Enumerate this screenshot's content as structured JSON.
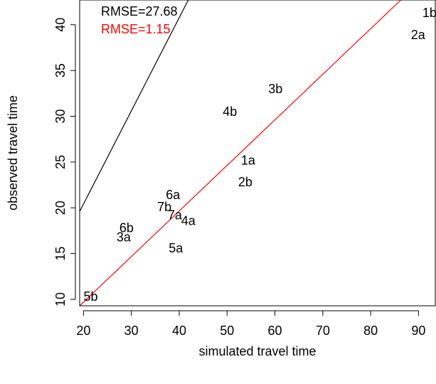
{
  "chart_data": {
    "type": "scatter",
    "xlabel": "simulated travel time",
    "ylabel": "observed travel time",
    "xlim": [
      19.2,
      93.5
    ],
    "ylim": [
      9.3,
      42.7
    ],
    "x_ticks": [
      "20",
      "30",
      "40",
      "50",
      "60",
      "70",
      "80",
      "90"
    ],
    "y_ticks": [
      "10",
      "15",
      "20",
      "25",
      "30",
      "35",
      "40"
    ],
    "points": [
      {
        "label": "1b",
        "x": 92.3,
        "y": 41.3
      },
      {
        "label": "2a",
        "x": 89.9,
        "y": 38.9
      },
      {
        "label": "3b",
        "x": 60.1,
        "y": 33.0
      },
      {
        "label": "4b",
        "x": 50.6,
        "y": 30.5
      },
      {
        "label": "1a",
        "x": 54.4,
        "y": 25.2
      },
      {
        "label": "2b",
        "x": 53.8,
        "y": 22.8
      },
      {
        "label": "6a",
        "x": 38.7,
        "y": 21.4
      },
      {
        "label": "7b",
        "x": 36.9,
        "y": 20.1
      },
      {
        "label": "7a",
        "x": 39.1,
        "y": 19.2
      },
      {
        "label": "4a",
        "x": 41.9,
        "y": 18.6
      },
      {
        "label": "6b",
        "x": 29.0,
        "y": 17.8
      },
      {
        "label": "3a",
        "x": 28.4,
        "y": 16.8
      },
      {
        "label": "5a",
        "x": 39.3,
        "y": 15.6
      },
      {
        "label": "5b",
        "x": 21.5,
        "y": 10.3
      }
    ],
    "lines": [
      {
        "color": "#000000",
        "x": [
          19.2,
          41.9
        ],
        "y": [
          19.6,
          42.7
        ]
      },
      {
        "color": "#ff0000",
        "x": [
          19.2,
          86.3
        ],
        "y": [
          9.3,
          42.7
        ]
      }
    ],
    "annotations": [
      {
        "text": "RMSE=27.68",
        "color": "#000000"
      },
      {
        "text": "RMSE=1.15",
        "color": "#ff0000"
      }
    ]
  }
}
